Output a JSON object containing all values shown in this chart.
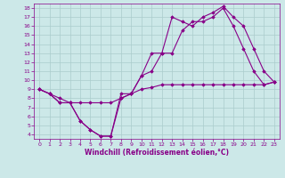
{
  "xlabel": "Windchill (Refroidissement éolien,°C)",
  "background_color": "#cce8e8",
  "line_color": "#880088",
  "xlim": [
    -0.5,
    23.5
  ],
  "ylim": [
    3.5,
    18.5
  ],
  "xticks": [
    0,
    1,
    2,
    3,
    4,
    5,
    6,
    7,
    8,
    9,
    10,
    11,
    12,
    13,
    14,
    15,
    16,
    17,
    18,
    19,
    20,
    21,
    22,
    23
  ],
  "yticks": [
    4,
    5,
    6,
    7,
    8,
    9,
    10,
    11,
    12,
    13,
    14,
    15,
    16,
    17,
    18
  ],
  "series1_x": [
    0,
    1,
    2,
    3,
    4,
    5,
    6,
    7,
    8,
    9,
    10,
    11,
    12,
    13,
    14,
    15,
    16,
    17,
    18,
    19,
    20,
    21,
    22,
    23
  ],
  "series1_y": [
    9.0,
    8.5,
    8.0,
    7.5,
    7.5,
    7.5,
    7.5,
    7.5,
    8.0,
    8.5,
    9.0,
    9.2,
    9.5,
    9.5,
    9.5,
    9.5,
    9.5,
    9.5,
    9.5,
    9.5,
    9.5,
    9.5,
    9.5,
    9.8
  ],
  "series2_x": [
    0,
    1,
    2,
    3,
    4,
    5,
    6,
    7,
    8,
    9,
    10,
    11,
    12,
    13,
    14,
    15,
    16,
    17,
    18,
    19,
    20,
    21,
    22,
    23
  ],
  "series2_y": [
    9.0,
    8.5,
    7.5,
    7.5,
    5.5,
    4.5,
    3.8,
    3.8,
    8.0,
    8.5,
    10.5,
    11.0,
    13.0,
    13.0,
    15.5,
    16.5,
    16.5,
    17.0,
    18.0,
    16.0,
    13.5,
    11.0,
    9.5,
    9.8
  ],
  "series3_x": [
    0,
    1,
    2,
    3,
    4,
    5,
    6,
    7,
    8,
    9,
    10,
    11,
    12,
    13,
    14,
    15,
    16,
    17,
    18,
    19,
    20,
    21,
    22,
    23
  ],
  "series3_y": [
    9.0,
    8.5,
    7.5,
    7.5,
    5.5,
    4.5,
    3.8,
    3.8,
    8.5,
    8.5,
    10.5,
    13.0,
    13.0,
    17.0,
    16.5,
    16.0,
    17.0,
    17.5,
    18.2,
    17.0,
    16.0,
    13.5,
    11.0,
    9.8
  ],
  "grid_color": "#aacccc",
  "font_color": "#880088",
  "marker": "D",
  "markersize": 1.8,
  "linewidth": 0.8,
  "xlabel_fontsize": 5.5,
  "tick_fontsize": 4.5
}
